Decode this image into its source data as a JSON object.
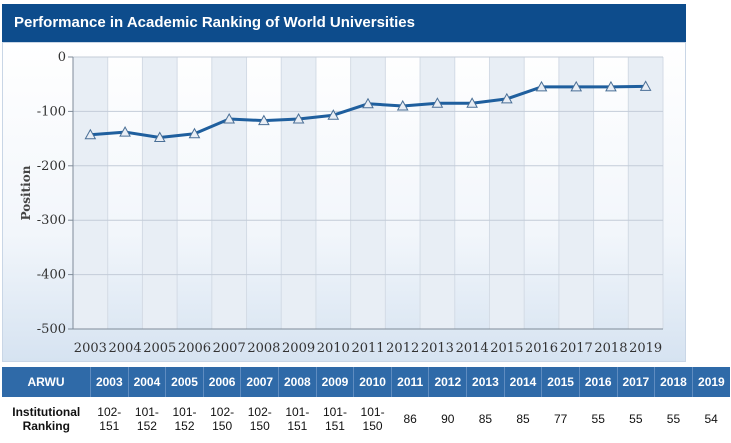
{
  "header": {
    "title": "Performance in Academic Ranking of World Universities"
  },
  "chart_data": {
    "type": "line",
    "x": [
      2003,
      2004,
      2005,
      2006,
      2007,
      2008,
      2009,
      2010,
      2011,
      2012,
      2013,
      2014,
      2015,
      2016,
      2017,
      2018,
      2019
    ],
    "series": [
      {
        "values": [
          -143,
          -138,
          -148,
          -141,
          -114,
          -117,
          -114,
          -107,
          -86,
          -90,
          -85,
          -85,
          -77,
          -55,
          -55,
          -55,
          -54
        ]
      }
    ],
    "ylabel": "Position",
    "xlabel": "",
    "ylim": [
      -500,
      0
    ],
    "yticks": [
      0,
      -100,
      -200,
      -300,
      -400,
      -500
    ],
    "ytick_labels": [
      "0",
      "-100",
      "-200",
      "-300",
      "-400",
      "-500"
    ],
    "xtick_labels": [
      "2003",
      "2004",
      "2005",
      "2006",
      "2007",
      "2008",
      "2009",
      "2010",
      "2011",
      "2012",
      "2013",
      "2014",
      "2015",
      "2016",
      "2017",
      "2018",
      "2019"
    ],
    "marker": "triangle",
    "line_color": "#1f5f9e",
    "grid": true
  },
  "table": {
    "header_label": "ARWU",
    "years": [
      "2003",
      "2004",
      "2005",
      "2006",
      "2007",
      "2008",
      "2009",
      "2010",
      "2011",
      "2012",
      "2013",
      "2014",
      "2015",
      "2016",
      "2017",
      "2018",
      "2019"
    ],
    "row_label": "Institutional\nRanking",
    "values": [
      "102-\n151",
      "101-\n152",
      "101-\n152",
      "102-\n150",
      "102-\n150",
      "101-\n151",
      "101-\n151",
      "101-\n150",
      "86",
      "90",
      "85",
      "85",
      "77",
      "55",
      "55",
      "55",
      "54"
    ]
  },
  "colors": {
    "title_bg": "#0d4c8c",
    "table_header_bg": "#2f6aa8",
    "line": "#1f5f9e",
    "band": "#e8eef5"
  }
}
